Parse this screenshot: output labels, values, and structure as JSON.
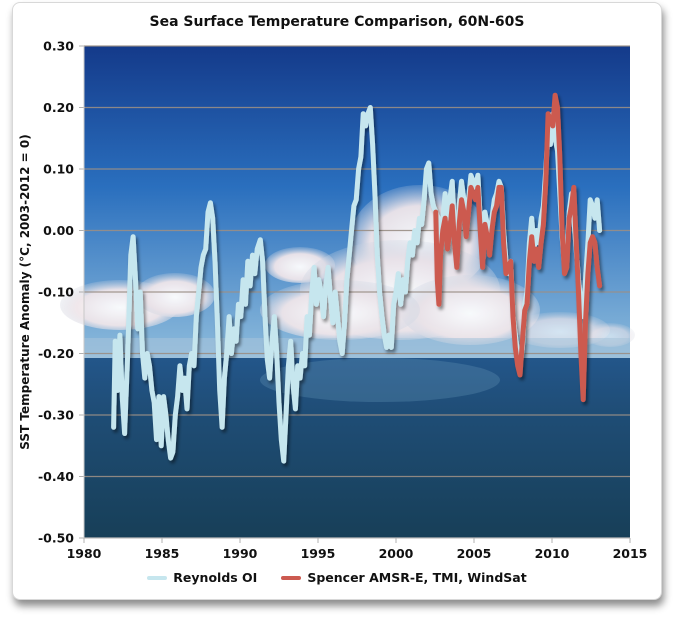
{
  "chart_data": {
    "type": "line",
    "title": "Sea Surface Temperature Comparison, 60N-60S",
    "xlabel": "",
    "ylabel": "SST Temperature Anomaly (°C, 2003-2012 = 0)",
    "xlim": [
      1980,
      2015
    ],
    "ylim": [
      -0.5,
      0.3
    ],
    "xticks": [
      "1980",
      "1985",
      "1990",
      "1995",
      "2000",
      "2005",
      "2010",
      "2015"
    ],
    "yticks": [
      "0.30",
      "0.20",
      "0.10",
      "0.00",
      "-0.10",
      "-0.20",
      "-0.30",
      "-0.40",
      "-0.50"
    ],
    "grid": "horizontal",
    "legend_position": "bottom",
    "background": "photo of ocean horizon with cumulus clouds and blue sky",
    "series": [
      {
        "name": "Reynolds OI",
        "color": "#c6e6ee",
        "points": [
          [
            1981.9,
            -0.32
          ],
          [
            1982.0,
            -0.18
          ],
          [
            1982.15,
            -0.26
          ],
          [
            1982.3,
            -0.17
          ],
          [
            1982.45,
            -0.27
          ],
          [
            1982.6,
            -0.33
          ],
          [
            1982.8,
            -0.2
          ],
          [
            1983.0,
            -0.04
          ],
          [
            1983.15,
            -0.01
          ],
          [
            1983.3,
            -0.08
          ],
          [
            1983.45,
            -0.16
          ],
          [
            1983.6,
            -0.1
          ],
          [
            1983.75,
            -0.2
          ],
          [
            1983.9,
            -0.24
          ],
          [
            1984.05,
            -0.2
          ],
          [
            1984.2,
            -0.22
          ],
          [
            1984.35,
            -0.26
          ],
          [
            1984.5,
            -0.28
          ],
          [
            1984.65,
            -0.34
          ],
          [
            1984.8,
            -0.27
          ],
          [
            1984.95,
            -0.35
          ],
          [
            1985.1,
            -0.27
          ],
          [
            1985.25,
            -0.3
          ],
          [
            1985.4,
            -0.34
          ],
          [
            1985.55,
            -0.37
          ],
          [
            1985.7,
            -0.36
          ],
          [
            1985.85,
            -0.3
          ],
          [
            1986.0,
            -0.27
          ],
          [
            1986.15,
            -0.22
          ],
          [
            1986.3,
            -0.26
          ],
          [
            1986.45,
            -0.24
          ],
          [
            1986.6,
            -0.29
          ],
          [
            1986.75,
            -0.22
          ],
          [
            1986.9,
            -0.2
          ],
          [
            1987.05,
            -0.22
          ],
          [
            1987.2,
            -0.14
          ],
          [
            1987.35,
            -0.1
          ],
          [
            1987.5,
            -0.06
          ],
          [
            1987.65,
            -0.04
          ],
          [
            1987.8,
            -0.03
          ],
          [
            1987.95,
            0.03
          ],
          [
            1988.1,
            0.045
          ],
          [
            1988.25,
            0.02
          ],
          [
            1988.4,
            -0.05
          ],
          [
            1988.55,
            -0.15
          ],
          [
            1988.7,
            -0.26
          ],
          [
            1988.85,
            -0.32
          ],
          [
            1989.0,
            -0.24
          ],
          [
            1989.15,
            -0.2
          ],
          [
            1989.3,
            -0.14
          ],
          [
            1989.45,
            -0.2
          ],
          [
            1989.6,
            -0.16
          ],
          [
            1989.75,
            -0.18
          ],
          [
            1989.9,
            -0.12
          ],
          [
            1990.05,
            -0.14
          ],
          [
            1990.2,
            -0.08
          ],
          [
            1990.35,
            -0.12
          ],
          [
            1990.5,
            -0.05
          ],
          [
            1990.65,
            -0.09
          ],
          [
            1990.8,
            -0.04
          ],
          [
            1990.95,
            -0.07
          ],
          [
            1991.1,
            -0.03
          ],
          [
            1991.3,
            -0.015
          ],
          [
            1991.45,
            -0.05
          ],
          [
            1991.6,
            -0.14
          ],
          [
            1991.75,
            -0.21
          ],
          [
            1991.9,
            -0.24
          ],
          [
            1992.05,
            -0.18
          ],
          [
            1992.2,
            -0.14
          ],
          [
            1992.35,
            -0.2
          ],
          [
            1992.5,
            -0.28
          ],
          [
            1992.65,
            -0.34
          ],
          [
            1992.8,
            -0.375
          ],
          [
            1992.95,
            -0.3
          ],
          [
            1993.1,
            -0.22
          ],
          [
            1993.25,
            -0.18
          ],
          [
            1993.4,
            -0.25
          ],
          [
            1993.55,
            -0.29
          ],
          [
            1993.7,
            -0.22
          ],
          [
            1993.85,
            -0.24
          ],
          [
            1994.0,
            -0.2
          ],
          [
            1994.15,
            -0.22
          ],
          [
            1994.3,
            -0.14
          ],
          [
            1994.45,
            -0.17
          ],
          [
            1994.6,
            -0.1
          ],
          [
            1994.75,
            -0.06
          ],
          [
            1994.9,
            -0.12
          ],
          [
            1995.05,
            -0.08
          ],
          [
            1995.2,
            -0.1
          ],
          [
            1995.35,
            -0.14
          ],
          [
            1995.5,
            -0.09
          ],
          [
            1995.65,
            -0.06
          ],
          [
            1995.8,
            -0.11
          ],
          [
            1995.95,
            -0.15
          ],
          [
            1996.1,
            -0.1
          ],
          [
            1996.25,
            -0.14
          ],
          [
            1996.4,
            -0.18
          ],
          [
            1996.55,
            -0.2
          ],
          [
            1996.7,
            -0.15
          ],
          [
            1996.85,
            -0.08
          ],
          [
            1997.0,
            -0.04
          ],
          [
            1997.15,
            0.0
          ],
          [
            1997.3,
            0.04
          ],
          [
            1997.45,
            0.05
          ],
          [
            1997.6,
            0.1
          ],
          [
            1997.75,
            0.12
          ],
          [
            1997.9,
            0.19
          ],
          [
            1998.05,
            0.17
          ],
          [
            1998.2,
            0.19
          ],
          [
            1998.35,
            0.2
          ],
          [
            1998.5,
            0.14
          ],
          [
            1998.65,
            0.06
          ],
          [
            1998.8,
            -0.04
          ],
          [
            1998.95,
            -0.1
          ],
          [
            1999.1,
            -0.14
          ],
          [
            1999.25,
            -0.17
          ],
          [
            1999.4,
            -0.19
          ],
          [
            1999.55,
            -0.17
          ],
          [
            1999.7,
            -0.19
          ],
          [
            1999.85,
            -0.12
          ],
          [
            2000.0,
            -0.1
          ],
          [
            2000.15,
            -0.07
          ],
          [
            2000.3,
            -0.12
          ],
          [
            2000.45,
            -0.08
          ],
          [
            2000.6,
            -0.1
          ],
          [
            2000.75,
            -0.05
          ],
          [
            2000.9,
            -0.02
          ],
          [
            2001.05,
            -0.04
          ],
          [
            2001.2,
            0.0
          ],
          [
            2001.35,
            -0.02
          ],
          [
            2001.5,
            0.02
          ],
          [
            2001.65,
            0.01
          ],
          [
            2001.8,
            0.05
          ],
          [
            2001.95,
            0.1
          ],
          [
            2002.1,
            0.11
          ],
          [
            2002.25,
            0.06
          ],
          [
            2002.4,
            0.04
          ],
          [
            2002.55,
            0.03
          ],
          [
            2002.7,
            0.02
          ],
          [
            2002.85,
            -0.02
          ],
          [
            2003.0,
            0.02
          ],
          [
            2003.15,
            0.06
          ],
          [
            2003.3,
            0.02
          ],
          [
            2003.45,
            0.05
          ],
          [
            2003.6,
            0.08
          ],
          [
            2003.75,
            0.0
          ],
          [
            2003.9,
            -0.04
          ],
          [
            2004.05,
            0.04
          ],
          [
            2004.2,
            0.08
          ],
          [
            2004.35,
            0.05
          ],
          [
            2004.5,
            0.01
          ],
          [
            2004.65,
            0.05
          ],
          [
            2004.8,
            0.09
          ],
          [
            2004.95,
            0.08
          ],
          [
            2005.1,
            0.07
          ],
          [
            2005.25,
            0.09
          ],
          [
            2005.4,
            0.02
          ],
          [
            2005.55,
            -0.04
          ],
          [
            2005.7,
            0.03
          ],
          [
            2005.85,
            0.01
          ],
          [
            2006.0,
            -0.02
          ],
          [
            2006.15,
            0.02
          ],
          [
            2006.3,
            0.05
          ],
          [
            2006.45,
            0.06
          ],
          [
            2006.6,
            0.08
          ],
          [
            2006.75,
            0.07
          ],
          [
            2006.9,
            0.0
          ],
          [
            2007.05,
            -0.05
          ],
          [
            2007.2,
            -0.07
          ],
          [
            2007.35,
            -0.05
          ],
          [
            2007.5,
            -0.14
          ],
          [
            2007.65,
            -0.17
          ],
          [
            2007.8,
            -0.2
          ],
          [
            2007.95,
            -0.22
          ],
          [
            2008.1,
            -0.19
          ],
          [
            2008.25,
            -0.12
          ],
          [
            2008.4,
            -0.1
          ],
          [
            2008.55,
            -0.02
          ],
          [
            2008.7,
            0.02
          ],
          [
            2008.85,
            -0.03
          ],
          [
            2009.0,
            0.0
          ],
          [
            2009.15,
            -0.02
          ],
          [
            2009.3,
            0.02
          ],
          [
            2009.45,
            0.04
          ],
          [
            2009.6,
            0.1
          ],
          [
            2009.75,
            0.16
          ],
          [
            2009.9,
            0.14
          ],
          [
            2010.05,
            0.19
          ],
          [
            2010.2,
            0.15
          ],
          [
            2010.35,
            0.13
          ],
          [
            2010.5,
            0.06
          ],
          [
            2010.65,
            -0.01
          ],
          [
            2010.8,
            -0.06
          ],
          [
            2010.95,
            -0.04
          ],
          [
            2011.1,
            0.03
          ],
          [
            2011.25,
            0.06
          ],
          [
            2011.4,
            0.02
          ],
          [
            2011.55,
            -0.03
          ],
          [
            2011.7,
            -0.08
          ],
          [
            2011.85,
            -0.12
          ],
          [
            2012.0,
            -0.14
          ],
          [
            2012.15,
            -0.08
          ],
          [
            2012.3,
            -0.02
          ],
          [
            2012.45,
            0.05
          ],
          [
            2012.6,
            0.04
          ],
          [
            2012.75,
            0.02
          ],
          [
            2012.9,
            0.05
          ],
          [
            2013.05,
            0.0
          ]
        ]
      },
      {
        "name": "Spencer AMSR-E, TMI, WindSat",
        "color": "#cc5a50",
        "points": [
          [
            2002.55,
            0.03
          ],
          [
            2002.65,
            -0.08
          ],
          [
            2002.75,
            -0.12
          ],
          [
            2002.85,
            -0.04
          ],
          [
            2003.0,
            0.0
          ],
          [
            2003.15,
            0.02
          ],
          [
            2003.3,
            -0.03
          ],
          [
            2003.45,
            0.0
          ],
          [
            2003.6,
            0.04
          ],
          [
            2003.75,
            -0.02
          ],
          [
            2003.9,
            -0.06
          ],
          [
            2004.05,
            0.01
          ],
          [
            2004.2,
            0.05
          ],
          [
            2004.35,
            0.03
          ],
          [
            2004.5,
            -0.01
          ],
          [
            2004.65,
            0.03
          ],
          [
            2004.8,
            0.07
          ],
          [
            2004.95,
            0.06
          ],
          [
            2005.1,
            0.05
          ],
          [
            2005.25,
            0.07
          ],
          [
            2005.4,
            0.0
          ],
          [
            2005.55,
            -0.06
          ],
          [
            2005.7,
            0.01
          ],
          [
            2005.85,
            -0.01
          ],
          [
            2006.0,
            -0.04
          ],
          [
            2006.15,
            0.0
          ],
          [
            2006.3,
            0.03
          ],
          [
            2006.45,
            0.04
          ],
          [
            2006.6,
            0.07
          ],
          [
            2006.75,
            0.07
          ],
          [
            2006.9,
            -0.02
          ],
          [
            2007.05,
            -0.07
          ],
          [
            2007.2,
            -0.06
          ],
          [
            2007.35,
            -0.05
          ],
          [
            2007.5,
            -0.14
          ],
          [
            2007.65,
            -0.19
          ],
          [
            2007.8,
            -0.22
          ],
          [
            2007.95,
            -0.235
          ],
          [
            2008.1,
            -0.18
          ],
          [
            2008.25,
            -0.13
          ],
          [
            2008.4,
            -0.12
          ],
          [
            2008.55,
            -0.05
          ],
          [
            2008.7,
            -0.01
          ],
          [
            2008.85,
            -0.05
          ],
          [
            2009.0,
            -0.03
          ],
          [
            2009.15,
            -0.06
          ],
          [
            2009.3,
            -0.02
          ],
          [
            2009.45,
            0.01
          ],
          [
            2009.6,
            0.08
          ],
          [
            2009.75,
            0.19
          ],
          [
            2009.9,
            0.18
          ],
          [
            2010.05,
            0.17
          ],
          [
            2010.2,
            0.22
          ],
          [
            2010.35,
            0.2
          ],
          [
            2010.5,
            0.12
          ],
          [
            2010.65,
            0.0
          ],
          [
            2010.8,
            -0.07
          ],
          [
            2010.95,
            -0.06
          ],
          [
            2011.1,
            0.02
          ],
          [
            2011.25,
            0.04
          ],
          [
            2011.4,
            0.07
          ],
          [
            2011.55,
            -0.02
          ],
          [
            2011.7,
            -0.1
          ],
          [
            2011.85,
            -0.2
          ],
          [
            2012.0,
            -0.275
          ],
          [
            2012.15,
            -0.15
          ],
          [
            2012.3,
            -0.07
          ],
          [
            2012.45,
            -0.02
          ],
          [
            2012.6,
            -0.01
          ],
          [
            2012.75,
            -0.02
          ],
          [
            2012.9,
            -0.06
          ],
          [
            2013.05,
            -0.09
          ]
        ]
      }
    ]
  },
  "legend": {
    "items": [
      {
        "label": "Reynolds OI",
        "color": "#c6e6ee"
      },
      {
        "label": "Spencer AMSR-E, TMI, WindSat",
        "color": "#cc5a50"
      }
    ]
  },
  "colors": {
    "sky_top": "#153c8c",
    "sky_mid": "#2a73c0",
    "horizon_sky": "#8fbbd8",
    "sea_top": "#1f4f7e",
    "sea_bottom": "#163f5b",
    "gridline": "#9a8f86"
  }
}
